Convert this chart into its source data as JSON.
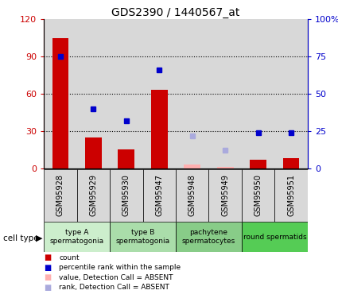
{
  "title": "GDS2390 / 1440567_at",
  "samples": [
    "GSM95928",
    "GSM95929",
    "GSM95930",
    "GSM95947",
    "GSM95948",
    "GSM95949",
    "GSM95950",
    "GSM95951"
  ],
  "bar_values": [
    105,
    25,
    15,
    63,
    null,
    null,
    7,
    8
  ],
  "bar_absent_values": [
    null,
    null,
    null,
    null,
    3,
    1,
    null,
    null
  ],
  "rank_values": [
    75,
    40,
    32,
    66,
    null,
    null,
    24,
    24
  ],
  "rank_absent_values": [
    null,
    null,
    null,
    null,
    22,
    12,
    null,
    null
  ],
  "bar_color": "#cc0000",
  "bar_absent_color": "#ffb0b0",
  "rank_color": "#0000cc",
  "rank_absent_color": "#aaaadd",
  "ylim_left": [
    0,
    120
  ],
  "ylim_right": [
    0,
    100
  ],
  "yticks_left": [
    0,
    30,
    60,
    90,
    120
  ],
  "yticks_right": [
    0,
    25,
    50,
    75,
    100
  ],
  "ytick_labels_left": [
    "0",
    "30",
    "60",
    "90",
    "120"
  ],
  "ytick_labels_right": [
    "0",
    "25",
    "50",
    "75",
    "100%"
  ],
  "cell_type_label": "cell type",
  "group_boundaries": [
    [
      0,
      1,
      "type A\nspermatogonia",
      "#cceecc"
    ],
    [
      2,
      3,
      "type B\nspermatogonia",
      "#aaddaa"
    ],
    [
      4,
      5,
      "pachytene\nspermatocytes",
      "#88cc88"
    ],
    [
      6,
      7,
      "round spermatids",
      "#55cc55"
    ]
  ],
  "legend_items": [
    {
      "label": "count",
      "color": "#cc0000"
    },
    {
      "label": "percentile rank within the sample",
      "color": "#0000cc"
    },
    {
      "label": "value, Detection Call = ABSENT",
      "color": "#ffb0b0"
    },
    {
      "label": "rank, Detection Call = ABSENT",
      "color": "#aaaadd"
    }
  ]
}
